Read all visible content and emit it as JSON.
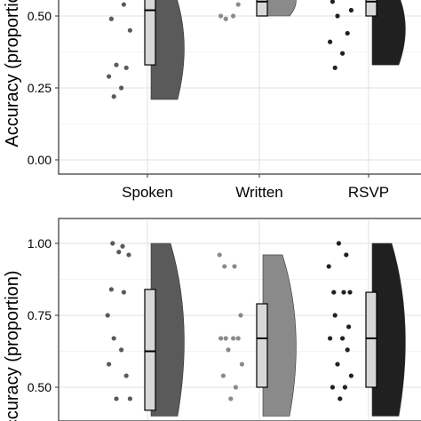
{
  "chart_data": [
    {
      "type": "raincloud",
      "panel": "top",
      "ylabel": "Accuracy (proportion)",
      "ylim": [
        0,
        1
      ],
      "y_ticks": [
        0.0,
        0.25,
        0.5
      ],
      "y_tick_labels": [
        "0.00",
        "0.25",
        "0.50"
      ],
      "grid": true,
      "categories": [
        "Spoken",
        "Written",
        "RSVP"
      ],
      "colors": [
        "#5a5a5a",
        "#8a8a8a",
        "#202020"
      ],
      "groups": [
        {
          "points": [
            0.22,
            0.25,
            0.29,
            0.32,
            0.33,
            0.45,
            0.49,
            0.54,
            0.58
          ],
          "box": {
            "q1": 0.33,
            "median": 0.52,
            "q3": 0.62
          },
          "cloud": {
            "min": 0.21,
            "max": 0.62
          }
        },
        {
          "points": [
            0.49,
            0.5,
            0.5,
            0.54
          ],
          "box": {
            "q1": 0.5,
            "median": 0.55,
            "q3": 0.6
          },
          "cloud": {
            "min": 0.5,
            "max": 0.62
          }
        },
        {
          "points": [
            0.32,
            0.37,
            0.41,
            0.44,
            0.5,
            0.52,
            0.55
          ],
          "box": {
            "q1": 0.5,
            "median": 0.55,
            "q3": 0.62
          },
          "cloud": {
            "min": 0.33,
            "max": 0.62
          }
        }
      ]
    },
    {
      "type": "raincloud",
      "panel": "bottom",
      "ylabel": "Accuracy (proportion)",
      "ylim": [
        0.5,
        1
      ],
      "y_ticks": [
        0.5,
        0.75,
        1.0
      ],
      "y_tick_labels": [
        "0.50",
        "0.75",
        "1.00"
      ],
      "grid": true,
      "categories": [
        "Spoken",
        "Written",
        "RSVP"
      ],
      "colors": [
        "#5a5a5a",
        "#8a8a8a",
        "#202020"
      ],
      "groups": [
        {
          "points": [
            0.67,
            0.63,
            0.58,
            0.54,
            0.46,
            0.46,
            0.84,
            0.83,
            0.97,
            0.96,
            1.0,
            0.99,
            0.75
          ],
          "box": {
            "q1": 0.42,
            "median": 0.625,
            "q3": 0.84
          },
          "cloud": {
            "min": 0.4,
            "max": 1.0
          }
        },
        {
          "points": [
            0.67,
            0.67,
            0.67,
            0.67,
            0.63,
            0.58,
            0.54,
            0.5,
            0.46,
            0.75,
            0.92,
            0.92,
            0.96
          ],
          "box": {
            "q1": 0.5,
            "median": 0.67,
            "q3": 0.79
          },
          "cloud": {
            "min": 0.4,
            "max": 0.96
          }
        },
        {
          "points": [
            0.75,
            0.67,
            0.67,
            0.63,
            0.58,
            0.54,
            0.5,
            0.5,
            0.46,
            0.83,
            0.83,
            0.83,
            0.92,
            0.96,
            1.0,
            0.71
          ],
          "box": {
            "q1": 0.5,
            "median": 0.67,
            "q3": 0.83
          },
          "cloud": {
            "min": 0.4,
            "max": 1.0
          }
        }
      ]
    }
  ]
}
